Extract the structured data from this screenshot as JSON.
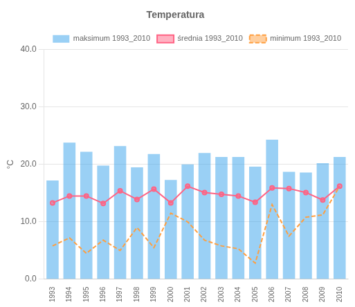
{
  "chart_data": {
    "type": "bar",
    "title": "Temperatura",
    "ylabel": "°C",
    "categories": [
      "1993",
      "1994",
      "1995",
      "1996",
      "1997",
      "1998",
      "1999",
      "2000",
      "2001",
      "2002",
      "2003",
      "2004",
      "2005",
      "2006",
      "2007",
      "2008",
      "2009",
      "2010"
    ],
    "series": [
      {
        "name": "maksimum 1993_2010",
        "type": "bar",
        "values": [
          17.2,
          23.8,
          22.2,
          19.8,
          23.2,
          19.5,
          21.8,
          17.3,
          20.0,
          22.0,
          21.3,
          21.3,
          19.6,
          24.3,
          18.7,
          18.6,
          20.2,
          21.3
        ]
      },
      {
        "name": "średnia 1993_2010",
        "type": "line",
        "marker": "circle",
        "line_style": "solid",
        "values": [
          13.3,
          14.5,
          14.5,
          13.2,
          15.4,
          13.9,
          15.7,
          13.3,
          16.2,
          15.1,
          14.8,
          14.5,
          13.4,
          15.9,
          15.8,
          15.1,
          13.8,
          16.2
        ]
      },
      {
        "name": "minimum 1993_2010",
        "type": "line",
        "marker": "none",
        "line_style": "dashed",
        "values": [
          5.8,
          7.2,
          4.5,
          6.8,
          5.0,
          9.0,
          5.5,
          11.5,
          10.0,
          6.8,
          5.8,
          5.3,
          2.8,
          13.0,
          7.5,
          10.8,
          11.2,
          16.2
        ]
      }
    ],
    "ylim": [
      0,
      40
    ],
    "yticks": [
      {
        "value": 0,
        "label": "0.0"
      },
      {
        "value": 10,
        "label": "10.0"
      },
      {
        "value": 20,
        "label": "20.0"
      },
      {
        "value": 30,
        "label": "30.0"
      },
      {
        "value": 40,
        "label": "40.0"
      }
    ],
    "grid": true,
    "legend": "upper right"
  }
}
